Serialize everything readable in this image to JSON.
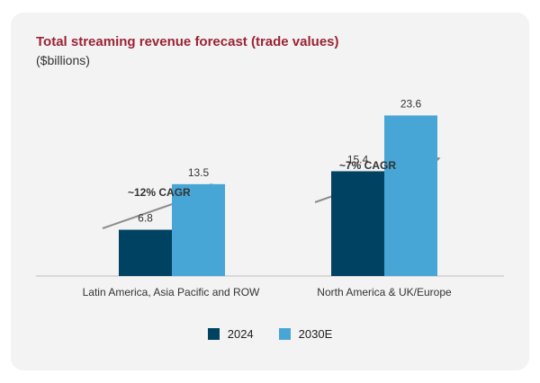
{
  "title": "Total streaming revenue forecast (trade values)",
  "subtitle": "($billions)",
  "colors": {
    "title": "#9b2335",
    "s2024": "#004261",
    "s2030": "#47a6d6",
    "arrow": "#8c8c8c"
  },
  "chart_data": {
    "type": "bar",
    "categories": [
      "Latin America, Asia Pacific and ROW",
      "North America & UK/Europe"
    ],
    "series": [
      {
        "name": "2024",
        "values": [
          6.8,
          15.4
        ]
      },
      {
        "name": "2030E",
        "values": [
          13.5,
          23.6
        ]
      }
    ],
    "data_labels": [
      [
        "6.8",
        "15.4"
      ],
      [
        "13.5",
        "23.6"
      ]
    ],
    "annotations": [
      "~12% CAGR",
      "~7% CAGR"
    ],
    "title": "Total streaming revenue forecast (trade values)",
    "ylabel": "($billions)",
    "ylim": [
      0,
      30
    ],
    "grid": false,
    "legend": "bottom"
  }
}
